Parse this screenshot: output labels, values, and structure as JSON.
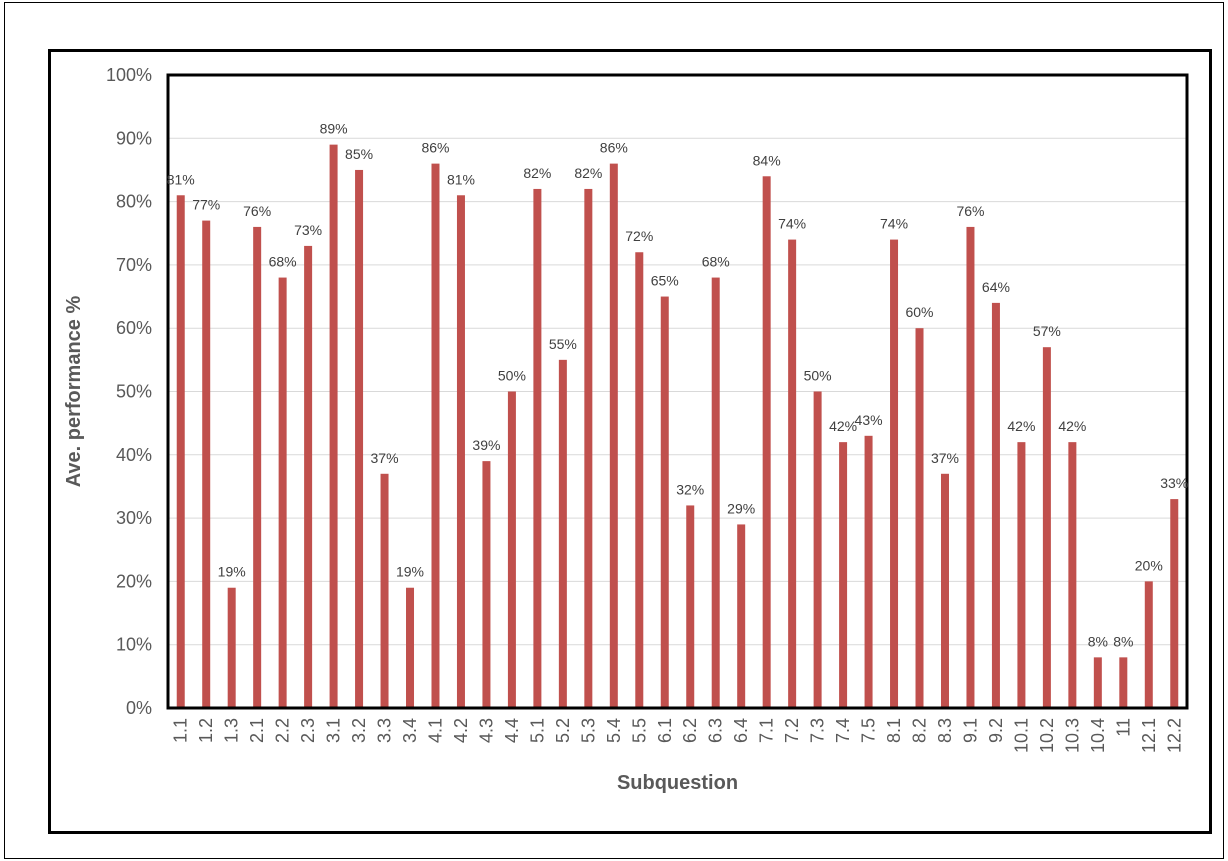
{
  "chart_data": {
    "type": "bar",
    "title": "",
    "xlabel": "Subquestion",
    "ylabel": "Ave. performance %",
    "ylim": [
      0,
      100
    ],
    "y_ticks": [
      "0%",
      "10%",
      "20%",
      "30%",
      "40%",
      "50%",
      "60%",
      "70%",
      "80%",
      "90%",
      "100%"
    ],
    "grid": true,
    "legend": "none",
    "bar_color": "#c0504d",
    "categories": [
      "1.1",
      "1.2",
      "1.3",
      "2.1",
      "2.2",
      "2.3",
      "3.1",
      "3.2",
      "3.3",
      "3.4",
      "4.1",
      "4.2",
      "4.3",
      "4.4",
      "5.1",
      "5.2",
      "5.3",
      "5.4",
      "5.5",
      "6.1",
      "6.2",
      "6.3",
      "6.4",
      "7.1",
      "7.2",
      "7.3",
      "7.4",
      "7.5",
      "8.1",
      "8.2",
      "8.3",
      "9.1",
      "9.2",
      "10.1",
      "10.2",
      "10.3",
      "10.4",
      "11",
      "12.1",
      "12.2"
    ],
    "values": [
      81,
      77,
      19,
      76,
      68,
      73,
      89,
      85,
      37,
      19,
      86,
      81,
      39,
      50,
      82,
      55,
      82,
      86,
      72,
      65,
      32,
      68,
      29,
      84,
      74,
      50,
      42,
      43,
      74,
      60,
      37,
      76,
      64,
      42,
      57,
      42,
      8,
      8,
      20,
      33
    ],
    "value_labels": [
      "81%",
      "77%",
      "19%",
      "76%",
      "68%",
      "73%",
      "89%",
      "85%",
      "37%",
      "19%",
      "86%",
      "81%",
      "39%",
      "50%",
      "82%",
      "55%",
      "82%",
      "86%",
      "72%",
      "65%",
      "32%",
      "68%",
      "29%",
      "84%",
      "74%",
      "50%",
      "42%",
      "43%",
      "74%",
      "60%",
      "37%",
      "76%",
      "64%",
      "42%",
      "57%",
      "42%",
      "8%",
      "8%",
      "20%",
      "33%"
    ]
  }
}
